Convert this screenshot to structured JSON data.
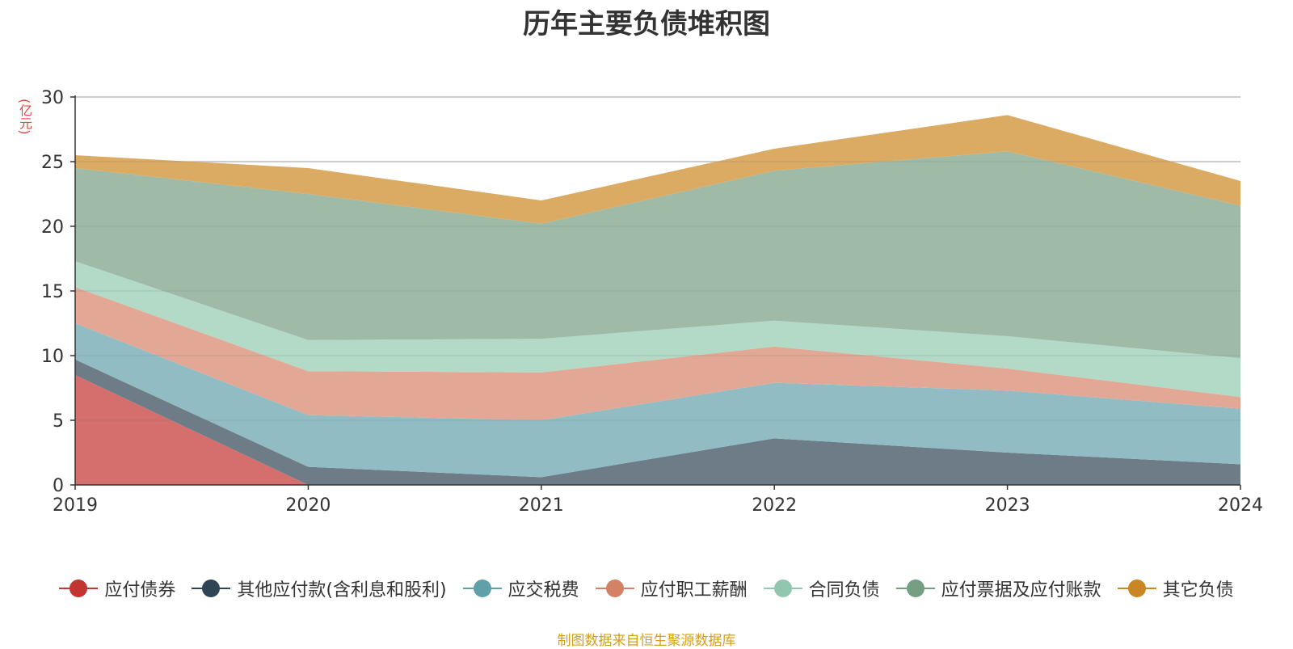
{
  "chart_data": {
    "type": "area",
    "stacked": true,
    "title": "历年主要负债堆积图",
    "ylabel": "(亿元)",
    "x": [
      "2019",
      "2020",
      "2021",
      "2022",
      "2023",
      "2024"
    ],
    "ylim": [
      0,
      30
    ],
    "yticks": [
      0,
      5,
      10,
      15,
      20,
      25,
      30
    ],
    "grid": true,
    "legend_position": "bottom",
    "series": [
      {
        "name": "应付债券",
        "color": "#c23531",
        "fill": "#d46f6e",
        "values": [
          8.5,
          0,
          0,
          0,
          0,
          0
        ]
      },
      {
        "name": "其他应付款(含利息和股利)",
        "color": "#2f4554",
        "fill": "#6e7c87",
        "values": [
          1.2,
          1.4,
          0.6,
          3.6,
          2.5,
          1.6
        ]
      },
      {
        "name": "应交税费",
        "color": "#61a0a8",
        "fill": "#92bcc3",
        "values": [
          2.8,
          4.0,
          4.4,
          4.3,
          4.8,
          4.3
        ]
      },
      {
        "name": "应付职工薪酬",
        "color": "#d48265",
        "fill": "#e2a895",
        "values": [
          2.8,
          3.4,
          3.7,
          2.8,
          1.7,
          0.9
        ]
      },
      {
        "name": "合同负债",
        "color": "#91c7ae",
        "fill": "#b2dac7",
        "values": [
          2.0,
          2.4,
          2.6,
          2.0,
          2.5,
          3.0
        ]
      },
      {
        "name": "应付票据及应付账款",
        "color": "#749f83",
        "fill": "#9fbba8",
        "values": [
          7.2,
          11.3,
          8.9,
          11.6,
          14.3,
          11.8
        ]
      },
      {
        "name": "其它负债",
        "color": "#ca8622",
        "fill": "#dbaa63",
        "values": [
          1.0,
          2.0,
          1.8,
          1.7,
          2.8,
          1.9
        ]
      }
    ]
  },
  "source_text": "制图数据来自恒生聚源数据库"
}
